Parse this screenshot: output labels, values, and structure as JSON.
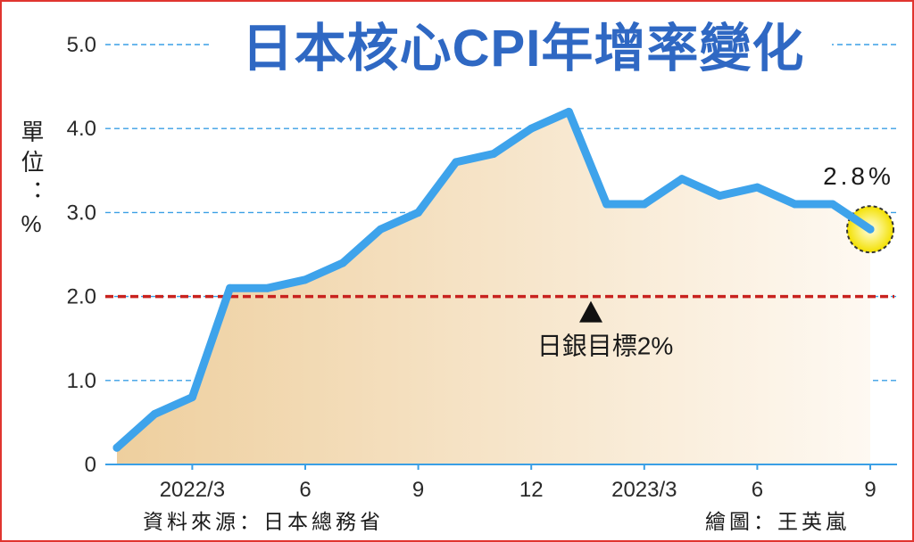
{
  "chart_data": {
    "type": "area",
    "title": "日本核心CPI年增率變化",
    "ylabel": "單位：%",
    "x": [
      "2022/1",
      "2022/2",
      "2022/3",
      "2022/4",
      "2022/5",
      "2022/6",
      "2022/7",
      "2022/8",
      "2022/9",
      "2022/10",
      "2022/11",
      "2022/12",
      "2023/1",
      "2023/2",
      "2023/3",
      "2023/4",
      "2023/5",
      "2023/6",
      "2023/7",
      "2023/8",
      "2023/9"
    ],
    "series": [
      {
        "values": [
          0.2,
          0.6,
          0.8,
          2.1,
          2.1,
          2.2,
          2.4,
          2.8,
          3.0,
          3.6,
          3.7,
          4.0,
          4.2,
          3.1,
          3.1,
          3.4,
          3.2,
          3.3,
          3.1,
          3.1,
          2.8
        ],
        "color": "#3ea3eb"
      }
    ],
    "ylim": [
      0,
      5
    ],
    "yticks": [
      {
        "value": 0,
        "label": "0"
      },
      {
        "value": 1,
        "label": "1.0"
      },
      {
        "value": 2,
        "label": "2.0"
      },
      {
        "value": 3,
        "label": "3.0"
      },
      {
        "value": 4,
        "label": "4.0"
      },
      {
        "value": 5,
        "label": "5.0"
      }
    ],
    "xticks": [
      {
        "x": "2022/3",
        "label": "2022/3"
      },
      {
        "x": "2022/6",
        "label": "6"
      },
      {
        "x": "2022/9",
        "label": "9"
      },
      {
        "x": "2022/12",
        "label": "12"
      },
      {
        "x": "2023/3",
        "label": "2023/3"
      },
      {
        "x": "2023/6",
        "label": "6"
      },
      {
        "x": "2023/9",
        "label": "9"
      }
    ],
    "grid": true,
    "reference_line": {
      "value": 2.0,
      "label": "日銀目標2%",
      "color": "#c8231f"
    },
    "highlight": {
      "x": "2023/9",
      "label": "2.8%",
      "color": "#f3e000"
    },
    "fill_gradient": [
      "#eecf9e",
      "#fef9f2"
    ]
  },
  "footer": {
    "source": "資料來源：日本總務省",
    "credit": "繪圖：王英嵐"
  },
  "colors": {
    "title": "#2f68c3",
    "frame": "#e0352f",
    "grid": "#3a9fe5",
    "axis": "#3a9fe5",
    "text": "#1f1f1f"
  }
}
